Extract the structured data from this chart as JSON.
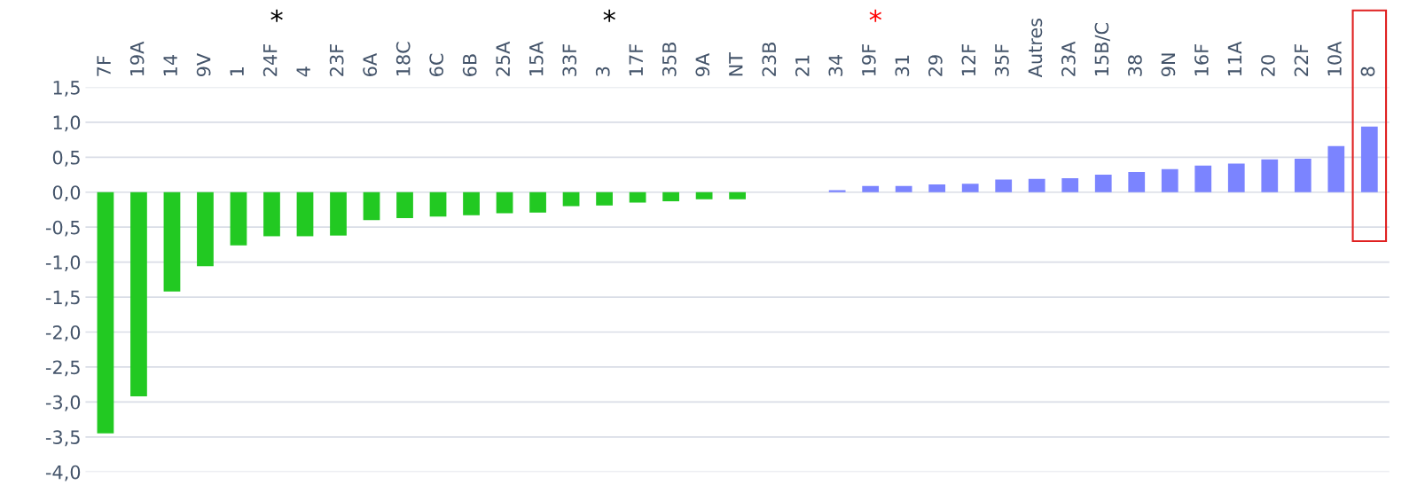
{
  "chart_data": {
    "type": "bar",
    "categories": [
      "7F",
      "19A",
      "14",
      "9V",
      "1",
      "24F",
      "4",
      "23F",
      "6A",
      "18C",
      "6C",
      "6B",
      "25A",
      "15A",
      "33F",
      "3",
      "17F",
      "35B",
      "9A",
      "NT",
      "23B",
      "21",
      "34",
      "19F",
      "31",
      "29",
      "12F",
      "35F",
      "Autres",
      "23A",
      "15B/C",
      "38",
      "9N",
      "16F",
      "11A",
      "20",
      "22F",
      "10A",
      "8"
    ],
    "values": [
      -3.45,
      -2.92,
      -1.42,
      -1.06,
      -0.76,
      -0.63,
      -0.63,
      -0.62,
      -0.4,
      -0.37,
      -0.35,
      -0.33,
      -0.3,
      -0.29,
      -0.2,
      -0.19,
      -0.15,
      -0.13,
      -0.1,
      -0.1,
      0,
      0,
      0.03,
      0.09,
      0.09,
      0.11,
      0.12,
      0.18,
      0.19,
      0.2,
      0.25,
      0.29,
      0.33,
      0.38,
      0.41,
      0.47,
      0.48,
      0.66,
      0.94
    ],
    "colors": [
      "#22c922",
      "#22c922",
      "#22c922",
      "#22c922",
      "#22c922",
      "#22c922",
      "#22c922",
      "#22c922",
      "#22c922",
      "#22c922",
      "#22c922",
      "#22c922",
      "#22c922",
      "#22c922",
      "#22c922",
      "#22c922",
      "#22c922",
      "#22c922",
      "#22c922",
      "#22c922",
      "#22c922",
      "#22c922",
      "#7b84ff",
      "#7b84ff",
      "#7b84ff",
      "#7b84ff",
      "#7b84ff",
      "#7b84ff",
      "#7b84ff",
      "#7b84ff",
      "#7b84ff",
      "#7b84ff",
      "#7b84ff",
      "#7b84ff",
      "#7b84ff",
      "#7b84ff",
      "#7b84ff",
      "#7b84ff",
      "#7b84ff"
    ],
    "ylim": [
      -4.0,
      1.5
    ],
    "yticks": [
      {
        "value": -4.0,
        "label": "-4,0"
      },
      {
        "value": -3.5,
        "label": "-3,5"
      },
      {
        "value": -3.0,
        "label": "-3,0"
      },
      {
        "value": -2.5,
        "label": "-2,5"
      },
      {
        "value": -2.0,
        "label": "-2,0"
      },
      {
        "value": -1.5,
        "label": "-1,5"
      },
      {
        "value": -1.0,
        "label": "-1,0"
      },
      {
        "value": -0.5,
        "label": "-0,5"
      },
      {
        "value": 0.0,
        "label": "0,0"
      },
      {
        "value": 0.5,
        "label": "0,5"
      },
      {
        "value": 1.0,
        "label": "1,0"
      },
      {
        "value": 1.5,
        "label": "1,5"
      }
    ],
    "grid": "y",
    "annotations": [
      "*",
      "*",
      "*"
    ]
  }
}
